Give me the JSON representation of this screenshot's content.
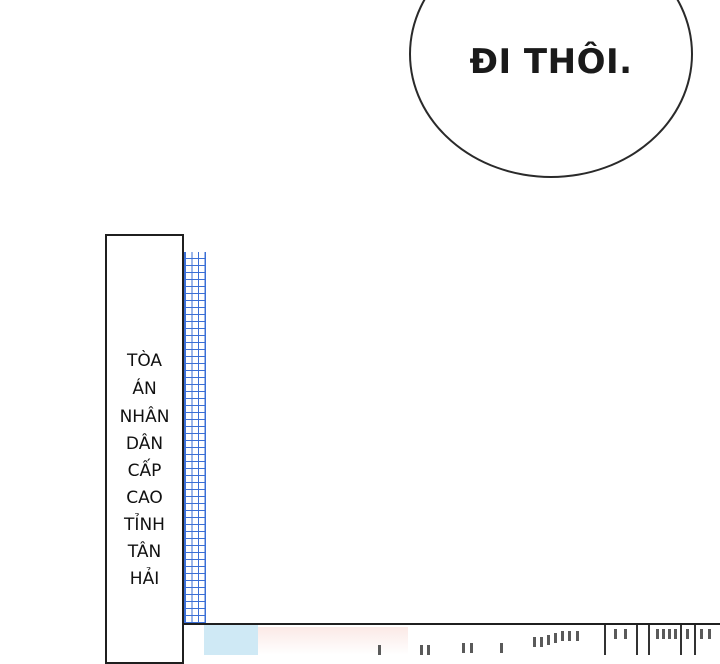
{
  "speech_bubble": {
    "text": "ĐI THÔI."
  },
  "sign": {
    "lines": [
      "TÒA",
      "ÁN",
      "NHÂN",
      "DÂN",
      "CẤP",
      "CAO",
      "TỈNH",
      "TÂN",
      "HẢI"
    ]
  }
}
